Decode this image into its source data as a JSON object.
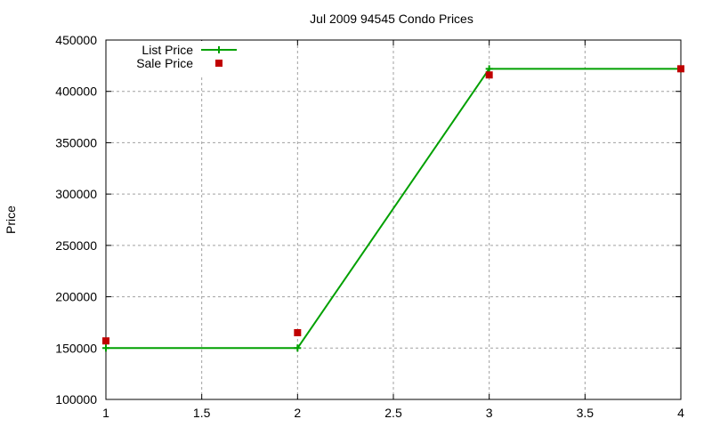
{
  "chart_data": {
    "type": "line",
    "title": "Jul 2009 94545 Condo Prices",
    "xlabel": "",
    "ylabel": "Price",
    "xlim": [
      1,
      4
    ],
    "ylim": [
      100000,
      450000
    ],
    "x_ticks": [
      "1",
      "1.5",
      "2",
      "2.5",
      "3",
      "3.5",
      "4"
    ],
    "y_ticks": [
      "100000",
      "150000",
      "200000",
      "250000",
      "300000",
      "350000",
      "400000",
      "450000"
    ],
    "grid": true,
    "legend_position": "top-left",
    "x": [
      1,
      2,
      3,
      4
    ],
    "series": [
      {
        "name": "List Price",
        "style": "linespoints",
        "color": "#00a000",
        "values": [
          150000,
          150000,
          422000,
          422000
        ]
      },
      {
        "name": "Sale Price",
        "style": "points",
        "color": "#c00000",
        "values": [
          157000,
          165000,
          416000,
          422000
        ]
      }
    ]
  }
}
